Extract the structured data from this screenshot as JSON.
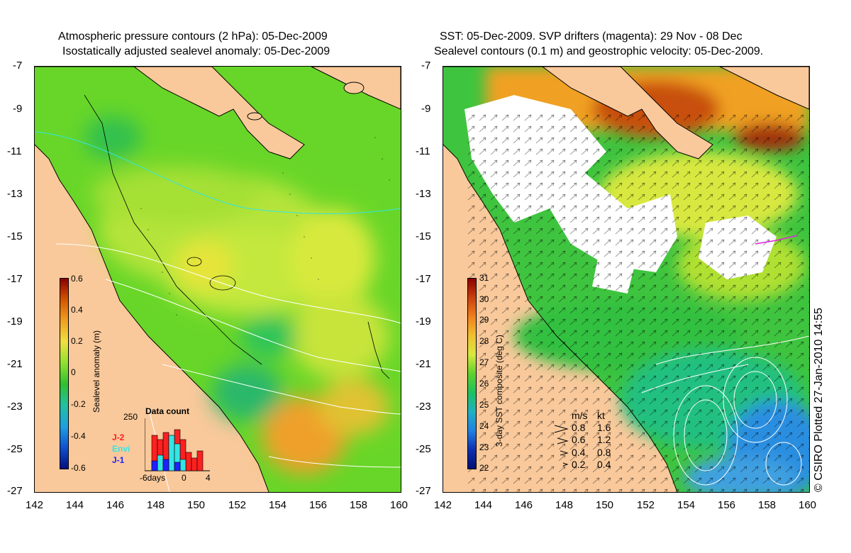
{
  "left_panel": {
    "title_line1": "Atmospheric pressure contours (2 hPa): 05-Dec-2009",
    "title_line2": "Isostatically adjusted sealevel anomaly: 05-Dec-2009",
    "colorbar_label": "Sealevel anomaly (m)",
    "colorbar_ticks": [
      "0.6",
      "0.4",
      "0.2",
      "0",
      "-0.2",
      "-0.4",
      "-0.6"
    ],
    "data_count": {
      "title": "Data count",
      "ymax": "250",
      "xticks": [
        "-6days",
        "0",
        "4"
      ],
      "legend": [
        {
          "label": "J-2",
          "color": "#ff2020"
        },
        {
          "label": "Envi",
          "color": "#33e5e5"
        },
        {
          "label": "J-1",
          "color": "#2020ff"
        }
      ]
    }
  },
  "right_panel": {
    "title_line1": "SST: 05-Dec-2009. SVP drifters (magenta): 29 Nov - 08 Dec",
    "title_line2": "Sealevel contours (0.1 m) and geostrophic velocity: 05-Dec-2009.",
    "colorbar_label": "3-day SST composite (deg C)",
    "colorbar_ticks": [
      "31",
      "30",
      "29",
      "28",
      "27",
      "26",
      "25",
      "24",
      "23",
      "22"
    ],
    "velocity_legend": {
      "header_ms": "m/s",
      "header_kt": "kt",
      "rows": [
        {
          "ms": "0.8",
          "kt": "1.6"
        },
        {
          "ms": "0.6",
          "kt": "1.2"
        },
        {
          "ms": "0.4",
          "kt": "0.8"
        },
        {
          "ms": "0.2",
          "kt": "0.4"
        }
      ]
    }
  },
  "y_ticks": [
    "-7",
    "-9",
    "-11",
    "-13",
    "-15",
    "-17",
    "-19",
    "-21",
    "-23",
    "-25",
    "-27"
  ],
  "x_ticks": [
    "142",
    "144",
    "146",
    "148",
    "150",
    "152",
    "154",
    "156",
    "158",
    "160"
  ],
  "credit": "© CSIRO Plotted 27-Jan-2010 14:55",
  "colors": {
    "land": "#f9c99b",
    "ocean_green": "#52d11e",
    "sst_white": "#ffffff"
  }
}
